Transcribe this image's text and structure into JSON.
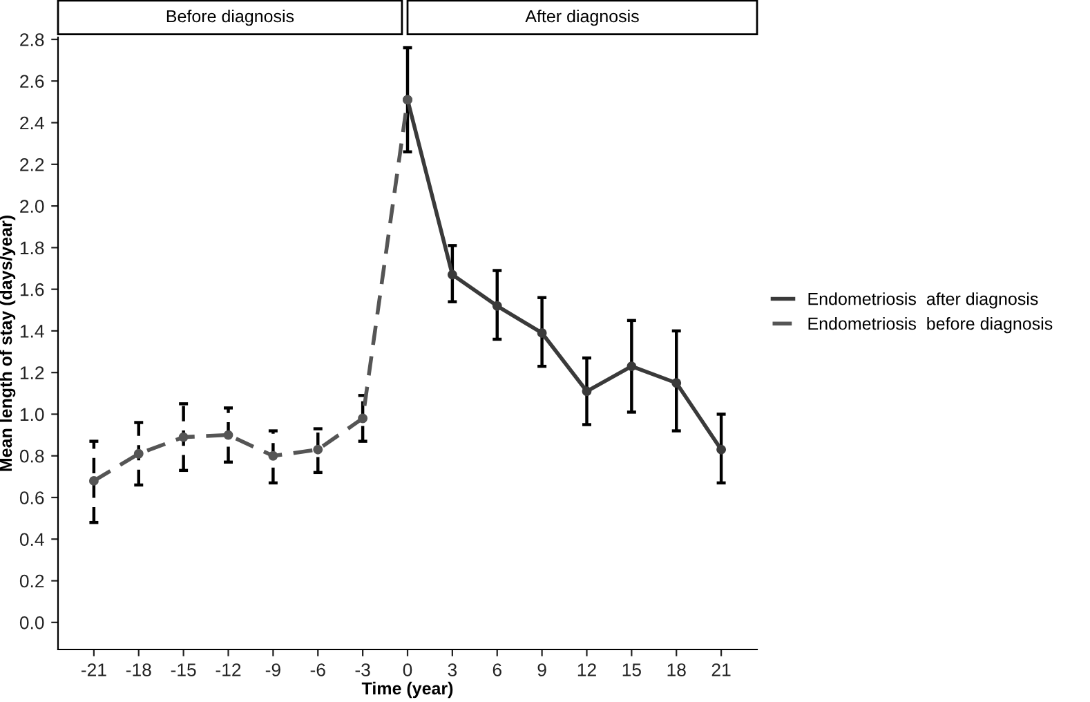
{
  "chart_data": {
    "type": "line",
    "xlabel": "Time (year)",
    "ylabel": "Mean length of stay (days/year)",
    "annotations": [
      "Before diagnosis",
      "After diagnosis"
    ],
    "xlim": [
      -23.4,
      23.4
    ],
    "xticks": [
      -21,
      -18,
      -15,
      -12,
      -9,
      -6,
      -3,
      0,
      3,
      6,
      9,
      12,
      15,
      18,
      21
    ],
    "ylim": [
      -0.13,
      2.81
    ],
    "yticks": [
      {
        "value": 0,
        "label": "0.0"
      },
      0.2,
      0.4,
      0.6,
      0.8,
      {
        "value": 1,
        "label": "1.0"
      },
      1.2,
      1.4,
      1.6,
      1.8,
      {
        "value": 2,
        "label": "2.0"
      },
      2.2,
      2.4,
      2.6,
      2.8
    ],
    "grid": false,
    "legend": "right",
    "marker": "circle",
    "series": [
      {
        "name": "Endometriosis  after diagnosis",
        "color": "#3a3a3a",
        "line_style": "solid",
        "x": [
          0,
          3,
          6,
          9,
          12,
          15,
          18,
          21
        ],
        "values": [
          2.51,
          1.67,
          1.52,
          1.39,
          1.11,
          1.23,
          1.15,
          0.83
        ],
        "errors": [
          [
            2.26,
            2.76
          ],
          [
            1.54,
            1.81
          ],
          [
            1.36,
            1.69
          ],
          [
            1.23,
            1.56
          ],
          [
            0.95,
            1.27
          ],
          [
            1.01,
            1.45
          ],
          [
            0.92,
            1.4
          ],
          [
            0.67,
            1.0
          ]
        ]
      },
      {
        "name": "Endometriosis  before diagnosis",
        "color": "#555555",
        "line_style": "dashed",
        "x": [
          -21,
          -18,
          -15,
          -12,
          -9,
          -6,
          -3,
          0
        ],
        "values": [
          0.68,
          0.81,
          0.89,
          0.9,
          0.8,
          0.83,
          0.98,
          2.51
        ],
        "errors": [
          [
            0.48,
            0.87
          ],
          [
            0.66,
            0.96
          ],
          [
            0.73,
            1.05
          ],
          [
            0.77,
            1.03
          ],
          [
            0.67,
            0.92
          ],
          [
            0.72,
            0.93
          ],
          [
            0.87,
            1.09
          ],
          null
        ]
      }
    ]
  }
}
